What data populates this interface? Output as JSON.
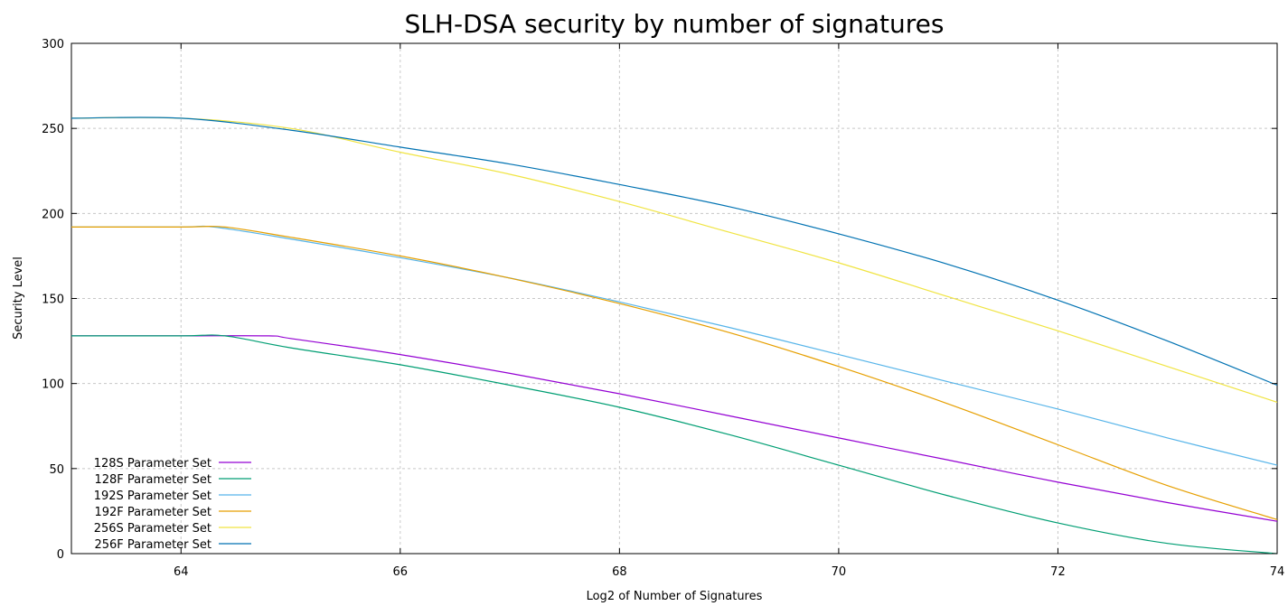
{
  "chart_data": {
    "type": "line",
    "title": "SLH-DSA security by number of signatures",
    "xlabel": "Log2 of Number of Signatures",
    "ylabel": "Security Level",
    "xlim": [
      63,
      74
    ],
    "ylim": [
      0,
      300
    ],
    "xticks": [
      64,
      66,
      68,
      70,
      72,
      74
    ],
    "yticks": [
      0,
      50,
      100,
      150,
      200,
      250,
      300
    ],
    "grid": true,
    "legend_position": "bottom-left",
    "series": [
      {
        "name": "128S Parameter Set",
        "color": "#9400d3",
        "points": [
          [
            63,
            128
          ],
          [
            64,
            128
          ],
          [
            64.8,
            128
          ],
          [
            65,
            126.5
          ],
          [
            66,
            117
          ],
          [
            67,
            106
          ],
          [
            68,
            94
          ],
          [
            69,
            81
          ],
          [
            70,
            68
          ],
          [
            71,
            55
          ],
          [
            72,
            42
          ],
          [
            73,
            30
          ],
          [
            74,
            19
          ]
        ]
      },
      {
        "name": "128F Parameter Set",
        "color": "#009e73",
        "points": [
          [
            63,
            128
          ],
          [
            64,
            128
          ],
          [
            64.4,
            128
          ],
          [
            65,
            121
          ],
          [
            66,
            111
          ],
          [
            67,
            99
          ],
          [
            68,
            86
          ],
          [
            69,
            70
          ],
          [
            70,
            52
          ],
          [
            71,
            34
          ],
          [
            72,
            18
          ],
          [
            73,
            6
          ],
          [
            74,
            0
          ]
        ]
      },
      {
        "name": "192S Parameter Set",
        "color": "#56b4e9",
        "points": [
          [
            63,
            192
          ],
          [
            64,
            192
          ],
          [
            64.3,
            192
          ],
          [
            65,
            185
          ],
          [
            66,
            174
          ],
          [
            67,
            162
          ],
          [
            68,
            148
          ],
          [
            69,
            133
          ],
          [
            70,
            117
          ],
          [
            71,
            101
          ],
          [
            72,
            85
          ],
          [
            73,
            68
          ],
          [
            74,
            52
          ]
        ]
      },
      {
        "name": "192F Parameter Set",
        "color": "#e69f00",
        "points": [
          [
            63,
            192
          ],
          [
            64,
            192
          ],
          [
            64.4,
            192
          ],
          [
            65,
            186
          ],
          [
            66,
            175
          ],
          [
            67,
            162
          ],
          [
            68,
            147
          ],
          [
            69,
            130
          ],
          [
            70,
            110
          ],
          [
            71,
            88
          ],
          [
            72,
            64
          ],
          [
            73,
            40
          ],
          [
            74,
            20
          ]
        ]
      },
      {
        "name": "256S Parameter Set",
        "color": "#f0e442",
        "points": [
          [
            63,
            256
          ],
          [
            64,
            256
          ],
          [
            65,
            250
          ],
          [
            66,
            236
          ],
          [
            67,
            223
          ],
          [
            68,
            207
          ],
          [
            69,
            189
          ],
          [
            70,
            171
          ],
          [
            71,
            151
          ],
          [
            72,
            131
          ],
          [
            73,
            110
          ],
          [
            74,
            89
          ]
        ]
      },
      {
        "name": "256F Parameter Set",
        "color": "#0072b2",
        "points": [
          [
            63,
            256
          ],
          [
            64,
            256
          ],
          [
            65,
            249
          ],
          [
            66,
            239
          ],
          [
            67,
            229
          ],
          [
            68,
            217
          ],
          [
            69,
            204
          ],
          [
            70,
            188
          ],
          [
            71,
            170
          ],
          [
            72,
            149
          ],
          [
            73,
            125
          ],
          [
            74,
            99
          ]
        ]
      }
    ]
  }
}
